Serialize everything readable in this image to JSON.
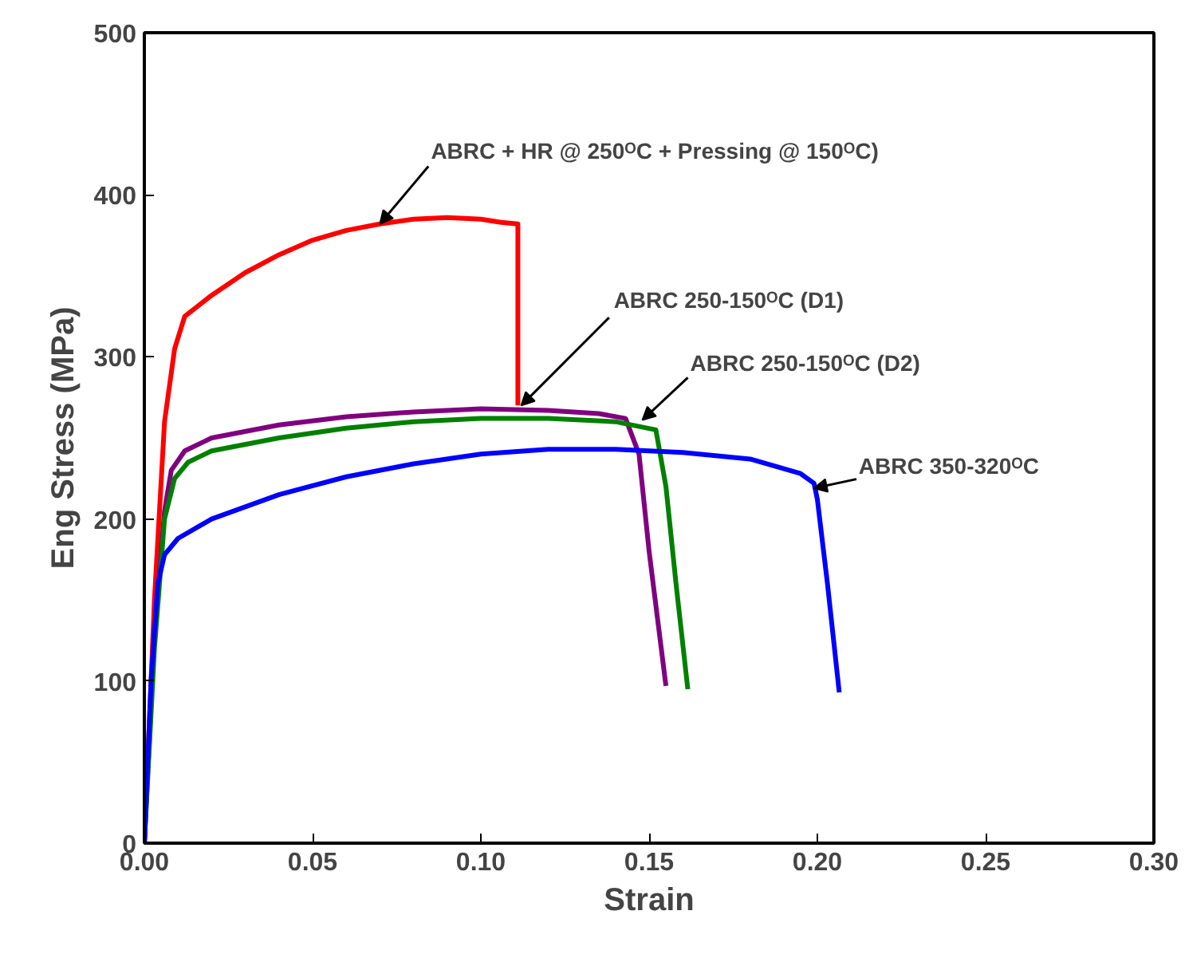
{
  "chart_data": {
    "type": "line",
    "xlabel": "Strain",
    "ylabel": "Eng Stress (MPa)",
    "xlim": [
      0,
      0.3
    ],
    "ylim": [
      0,
      500
    ],
    "xticks": [
      {
        "value": 0,
        "label": "0.00"
      },
      {
        "value": 0.05,
        "label": "0.05"
      },
      {
        "value": 0.1,
        "label": "0.10"
      },
      {
        "value": 0.15,
        "label": "0.15"
      },
      {
        "value": 0.2,
        "label": "0.20"
      },
      {
        "value": 0.25,
        "label": "0.25"
      },
      {
        "value": 0.3,
        "label": "0.30"
      }
    ],
    "yticks": [
      0,
      100,
      200,
      300,
      400,
      500
    ],
    "grid": false,
    "marker": "none",
    "line_style": "solid",
    "series": [
      {
        "color": "#ff0000",
        "x": [
          0,
          0.003,
          0.006,
          0.009,
          0.012,
          0.02,
          0.03,
          0.04,
          0.05,
          0.06,
          0.07,
          0.08,
          0.09,
          0.1,
          0.106,
          0.111,
          0.111
        ],
        "values": [
          0,
          150,
          260,
          305,
          325,
          338,
          352,
          363,
          372,
          378,
          382,
          385,
          386,
          385,
          383,
          382,
          270
        ]
      },
      {
        "color": "#800080",
        "x": [
          0,
          0.003,
          0.006,
          0.008,
          0.012,
          0.02,
          0.04,
          0.06,
          0.08,
          0.1,
          0.12,
          0.135,
          0.143,
          0.147,
          0.15,
          0.155
        ],
        "values": [
          0,
          130,
          205,
          230,
          242,
          250,
          258,
          263,
          266,
          268,
          267,
          265,
          262,
          240,
          180,
          97
        ]
      },
      {
        "color": "#008000",
        "x": [
          0,
          0.003,
          0.006,
          0.009,
          0.013,
          0.02,
          0.04,
          0.06,
          0.08,
          0.1,
          0.12,
          0.14,
          0.152,
          0.155,
          0.158,
          0.1615
        ],
        "values": [
          0,
          120,
          200,
          225,
          235,
          242,
          250,
          256,
          260,
          262,
          262,
          260,
          255,
          220,
          160,
          95
        ]
      },
      {
        "color": "#0000ff",
        "x": [
          0,
          0.002,
          0.004,
          0.006,
          0.01,
          0.02,
          0.04,
          0.06,
          0.08,
          0.1,
          0.12,
          0.14,
          0.16,
          0.18,
          0.195,
          0.199,
          0.2,
          0.203,
          0.2065
        ],
        "values": [
          0,
          100,
          160,
          178,
          188,
          200,
          215,
          226,
          234,
          240,
          243,
          243,
          241,
          237,
          228,
          222,
          212,
          160,
          93
        ]
      }
    ],
    "annotations": [
      {
        "text": "ABRC + HR @ 250ᴼC + Pressing @ 150ᴼC)",
        "x": 0.07,
        "y": 382
      },
      {
        "text": "ABRC 250-150ᴼC (D1)",
        "x": 0.112,
        "y": 270
      },
      {
        "text": "ABRC 250-150ᴼC (D2)",
        "x": 0.148,
        "y": 261
      },
      {
        "text": "ABRC 350-320ᴼC",
        "x": 0.199,
        "y": 219
      }
    ]
  }
}
